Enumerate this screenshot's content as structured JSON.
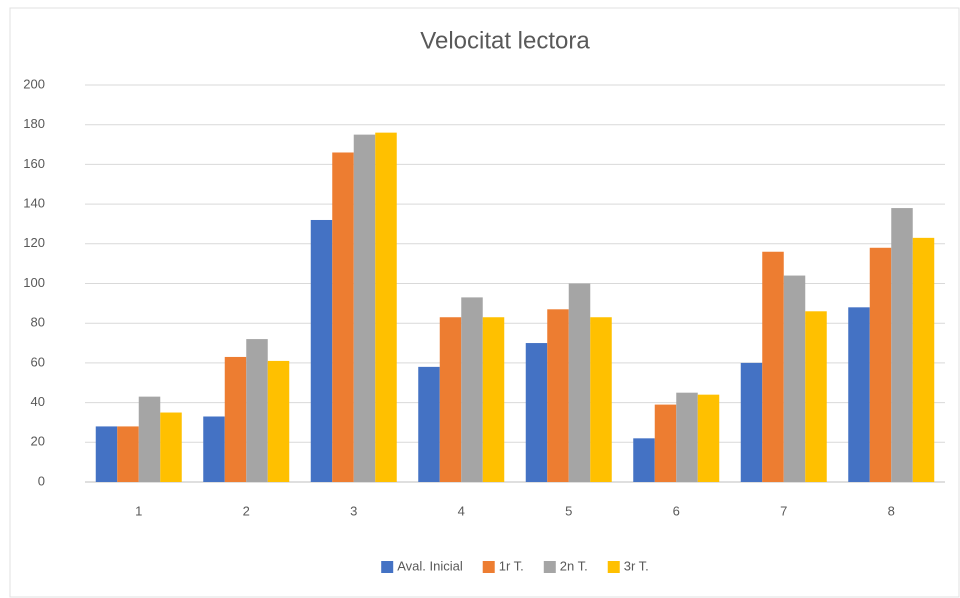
{
  "chart_data": {
    "type": "bar",
    "title": "Velocitat lectora",
    "categories": [
      "1",
      "2",
      "3",
      "4",
      "5",
      "6",
      "7",
      "8"
    ],
    "series": [
      {
        "name": "Aval. Inicial",
        "color": "#4472c4",
        "values": [
          28,
          33,
          132,
          58,
          70,
          22,
          60,
          88
        ]
      },
      {
        "name": "1r T.",
        "color": "#ed7d31",
        "values": [
          28,
          63,
          166,
          83,
          87,
          39,
          116,
          118
        ]
      },
      {
        "name": "2n T.",
        "color": "#a5a5a5",
        "values": [
          43,
          72,
          175,
          93,
          100,
          45,
          104,
          138
        ]
      },
      {
        "name": "3r T.",
        "color": "#ffc000",
        "values": [
          35,
          61,
          176,
          83,
          83,
          44,
          86,
          123
        ]
      }
    ],
    "ylim": [
      0,
      200
    ],
    "yticks": [
      0,
      20,
      40,
      60,
      80,
      100,
      120,
      140,
      160,
      180,
      200
    ],
    "grid": true,
    "legend": "bottom"
  }
}
